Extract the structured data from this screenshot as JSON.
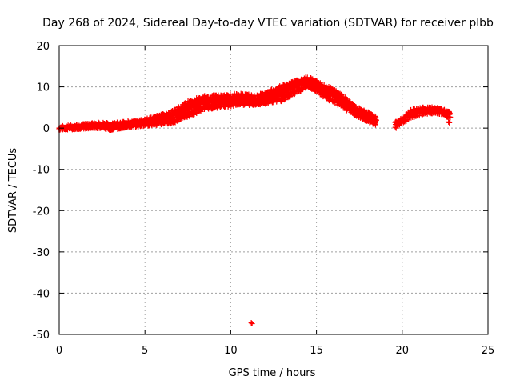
{
  "chart_data": {
    "type": "scatter",
    "title": "Day 268 of 2024, Sidereal Day-to-day VTEC variation (SDTVAR) for receiver plbb",
    "xlabel": "GPS time / hours",
    "ylabel": "SDTVAR / TECUs",
    "xlim": [
      0,
      25
    ],
    "ylim": [
      -50,
      20
    ],
    "grid": true,
    "x_ticks": [
      "0",
      "5",
      "10",
      "15",
      "20",
      "25"
    ],
    "y_ticks": [
      "20",
      "10",
      "0",
      "-10",
      "-20",
      "-30",
      "-40",
      "-50"
    ],
    "series": [
      {
        "name": "SDTVAR",
        "color": "#ff0000",
        "marker": "plus",
        "trend": {
          "x": [
            0.0,
            0.5,
            1.0,
            1.5,
            2.0,
            2.5,
            3.0,
            3.5,
            4.0,
            4.5,
            5.0,
            5.5,
            6.0,
            6.5,
            7.0,
            7.5,
            8.0,
            8.5,
            9.0,
            9.5,
            10.0,
            10.5,
            11.0,
            11.5,
            12.0,
            12.5,
            13.0,
            13.5,
            14.0,
            14.5,
            15.0,
            15.5,
            16.0,
            16.5,
            17.0,
            17.5,
            18.0,
            18.5
          ],
          "y": [
            0.0,
            0.2,
            0.3,
            0.5,
            0.6,
            0.8,
            0.8,
            1.0,
            1.2,
            1.4,
            1.6,
            1.8,
            2.2,
            3.0,
            4.0,
            5.0,
            6.0,
            6.5,
            7.0,
            7.0,
            6.8,
            7.5,
            7.5,
            6.8,
            7.0,
            7.5,
            8.5,
            10.0,
            11.0,
            11.5,
            11.0,
            9.5,
            8.0,
            6.5,
            5.0,
            3.8,
            2.5,
            1.5
          ]
        },
        "spread": {
          "x": [
            0.0,
            2.5,
            3.0,
            5.0,
            6.5,
            7.5,
            8.5,
            9.5,
            10.5,
            11.5,
            13.0,
            14.5,
            16.0,
            17.5,
            18.5
          ],
          "lower": [
            -0.5,
            0.0,
            -0.5,
            0.5,
            1.0,
            2.5,
            4.5,
            5.0,
            5.5,
            5.5,
            6.5,
            10.0,
            6.0,
            2.5,
            0.5
          ],
          "upper": [
            0.5,
            1.5,
            1.2,
            2.2,
            4.0,
            6.5,
            8.0,
            8.0,
            8.5,
            8.0,
            10.5,
            12.5,
            9.5,
            5.0,
            3.0
          ]
        },
        "segment2": {
          "x": [
            19.6,
            20.0,
            20.5,
            21.0,
            21.5,
            22.0,
            22.5,
            22.8
          ],
          "lower": [
            0.5,
            1.0,
            2.5,
            3.0,
            3.5,
            3.5,
            3.0,
            2.0
          ],
          "upper": [
            1.5,
            2.5,
            4.5,
            5.0,
            5.2,
            5.0,
            4.5,
            4.0
          ]
        },
        "outliers": [
          {
            "x": 11.2,
            "y": -47.2
          },
          {
            "x": 19.6,
            "y": 0.2
          },
          {
            "x": 22.7,
            "y": 1.5
          }
        ]
      }
    ]
  }
}
